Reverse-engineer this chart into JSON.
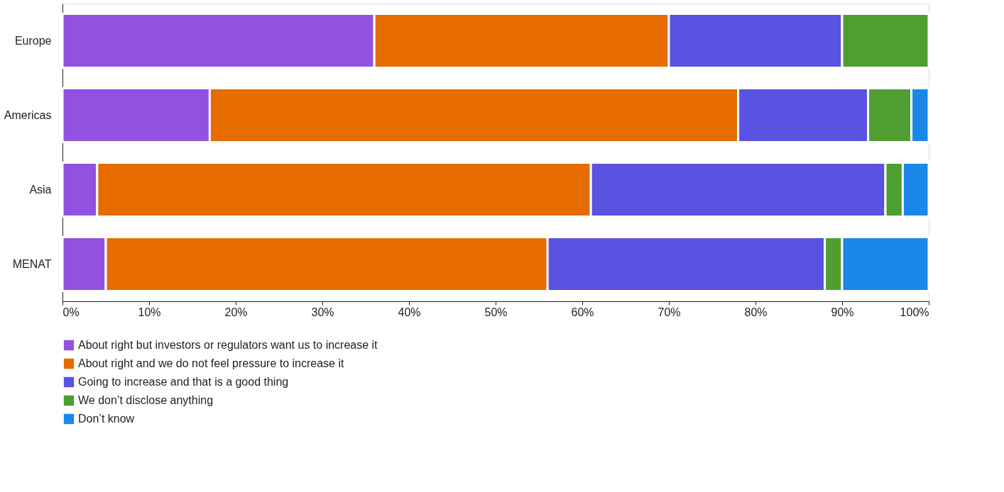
{
  "chart_data": {
    "type": "bar",
    "orientation": "horizontal",
    "stacked": true,
    "categories": [
      "Europe",
      "Americas",
      "Asia",
      "MENAT"
    ],
    "series": [
      {
        "name": "About right but investors or regulators want us to increase it",
        "color": "#9152df",
        "values": [
          36,
          17,
          4,
          5
        ]
      },
      {
        "name": "About right and we do not feel pressure to increase it",
        "color": "#e66c00",
        "values": [
          34,
          61,
          57,
          51
        ]
      },
      {
        "name": "Going to increase and that is a good thing",
        "color": "#5a52e0",
        "values": [
          20,
          15,
          34,
          32
        ]
      },
      {
        "name": "We don’t disclose anything",
        "color": "#4f9e32",
        "values": [
          10,
          5,
          2,
          2
        ]
      },
      {
        "name": "Don’t know",
        "color": "#1a87e9",
        "values": [
          null,
          2,
          3,
          10
        ]
      }
    ],
    "xlim": [
      0,
      100
    ],
    "xticks": [
      {
        "value": 0,
        "label": "0%"
      },
      {
        "value": 10,
        "label": "10%"
      },
      {
        "value": 20,
        "label": "20%"
      },
      {
        "value": 30,
        "label": "30%"
      },
      {
        "value": 40,
        "label": "40%"
      },
      {
        "value": 50,
        "label": "50%"
      },
      {
        "value": 60,
        "label": "60%"
      },
      {
        "value": 70,
        "label": "70%"
      },
      {
        "value": 80,
        "label": "80%"
      },
      {
        "value": 90,
        "label": "90%"
      },
      {
        "value": 100,
        "label": "100%"
      }
    ],
    "grid": false,
    "legend": "bottom"
  }
}
